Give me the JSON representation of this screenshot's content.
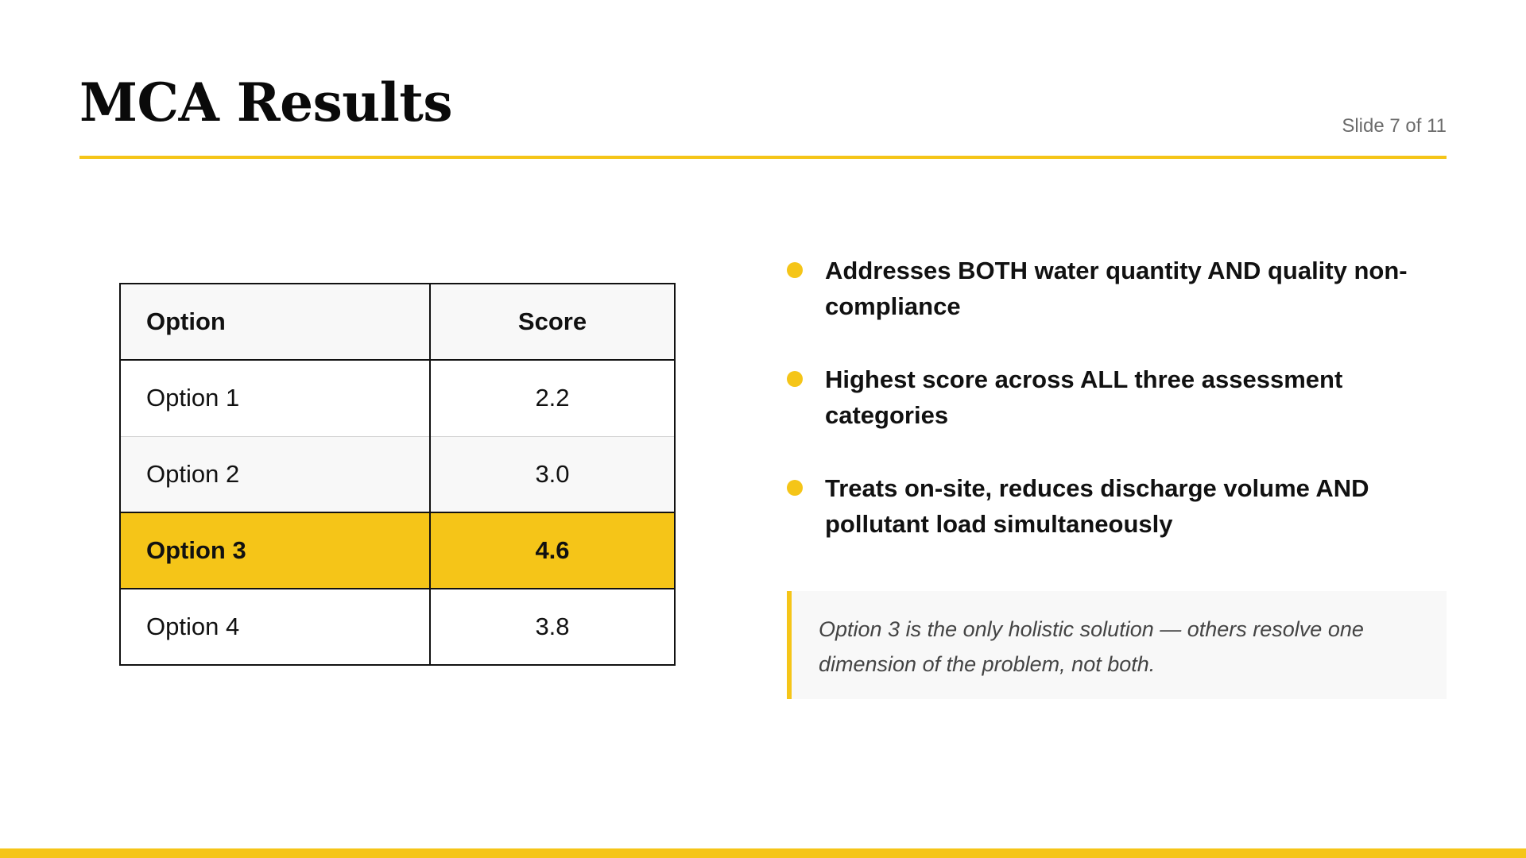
{
  "slide": {
    "title": "MCA Results",
    "slide_number": "Slide 7 of 11"
  },
  "table": {
    "headers": [
      "Option",
      "Score"
    ],
    "rows": [
      {
        "option": "Option 1",
        "score": "2.2",
        "highlighted": false
      },
      {
        "option": "Option 2",
        "score": "3.0",
        "highlighted": false
      },
      {
        "option": "Option 3",
        "score": "4.6",
        "highlighted": true
      },
      {
        "option": "Option 4",
        "score": "3.8",
        "highlighted": false
      }
    ]
  },
  "bullets": [
    "Addresses BOTH water quantity AND quality non-compliance",
    "Highest score across ALL three assessment categories",
    "Treats on-site, reduces discharge volume AND pollutant load simultaneously"
  ],
  "callout": "Option 3 is the only holistic solution — others resolve one dimension of the problem, not both.",
  "colors": {
    "accent": "#f5c518",
    "text": "#111111",
    "muted": "#6b6b6b",
    "panel": "#f8f8f8"
  }
}
